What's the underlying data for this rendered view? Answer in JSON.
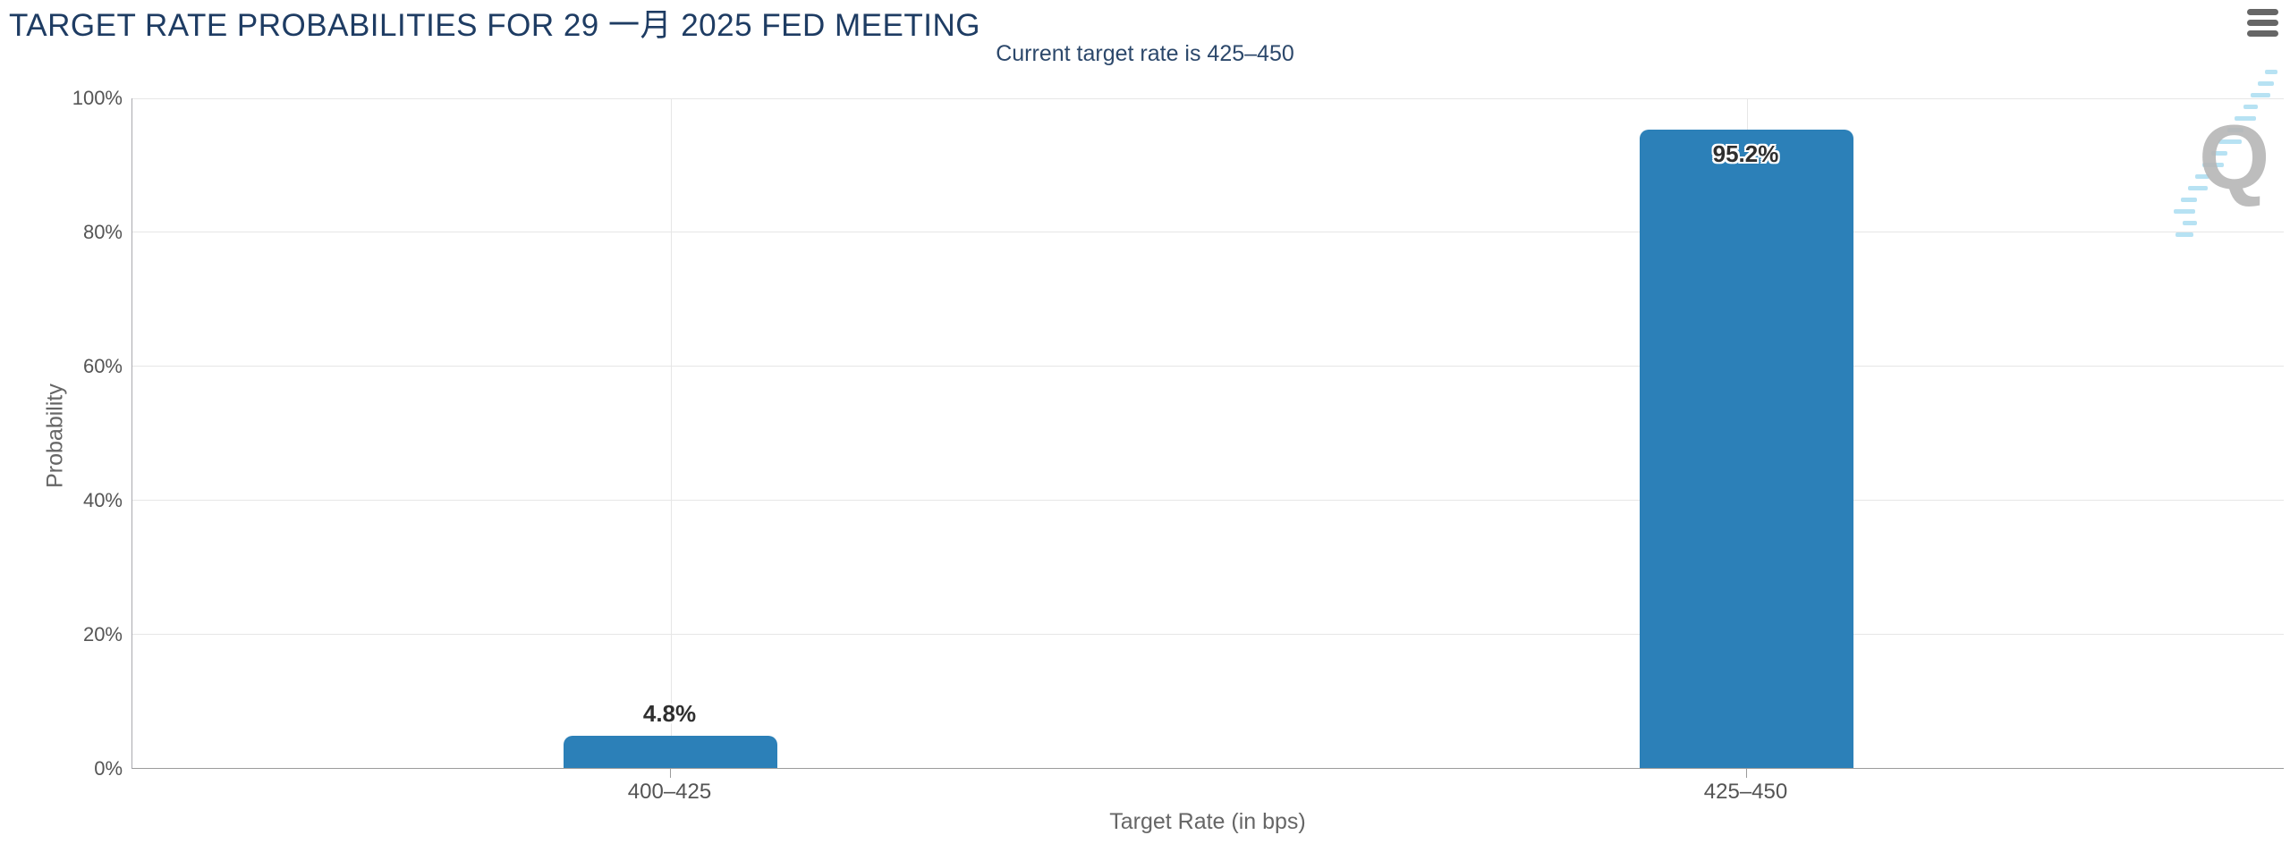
{
  "header": {
    "title": "TARGET RATE PROBABILITIES FOR 29 一月 2025 FED MEETING",
    "subtitle": "Current target rate is 425–450"
  },
  "menu": {
    "icon": "hamburger-menu-icon"
  },
  "watermark": {
    "letter": "Q"
  },
  "colors": {
    "bar": "#2c80b8",
    "title": "#1e3c63",
    "subtitle": "#2c486b",
    "gridline": "#e6e6e6",
    "axis_text": "#555555"
  },
  "chart_data": {
    "type": "bar",
    "title": "TARGET RATE PROBABILITIES FOR 29 一月 2025 FED MEETING",
    "subtitle": "Current target rate is 425–450",
    "categories": [
      "400–425",
      "425–450"
    ],
    "values": [
      4.8,
      95.2
    ],
    "value_labels": [
      "4.8%",
      "95.2%"
    ],
    "xlabel": "Target Rate (in bps)",
    "ylabel": "Probability",
    "ylim": [
      0,
      100
    ],
    "y_ticks": [
      {
        "value": 0,
        "label": "0%"
      },
      {
        "value": 20,
        "label": "20%"
      },
      {
        "value": 40,
        "label": "40%"
      },
      {
        "value": 60,
        "label": "60%"
      },
      {
        "value": 80,
        "label": "80%"
      },
      {
        "value": 100,
        "label": "100%"
      }
    ],
    "grid": true,
    "legend": false,
    "bar_color": "#2c80b8"
  }
}
